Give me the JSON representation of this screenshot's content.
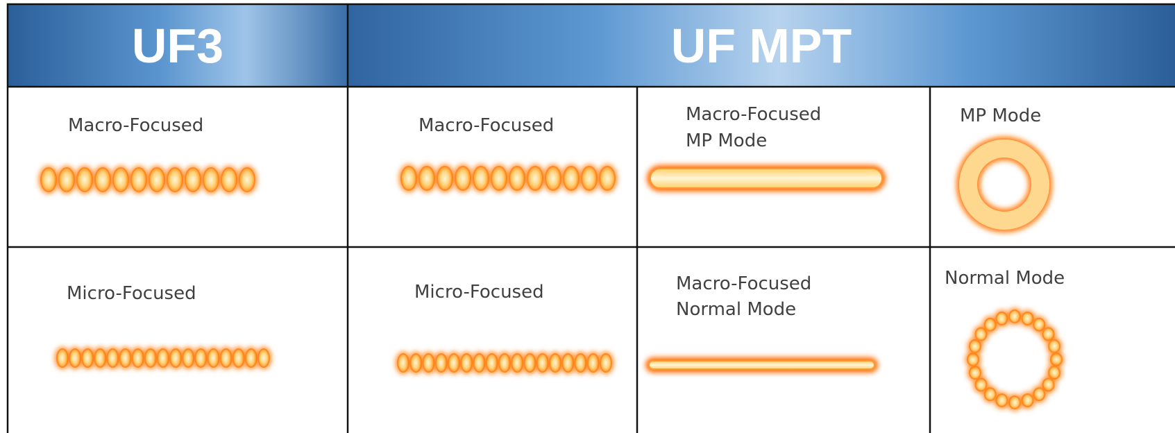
{
  "header": {
    "cells": [
      "UF3",
      "UF MPT"
    ]
  },
  "table": {
    "rows": [
      [
        [
          "Macro-Focused"
        ],
        [
          "Macro-Focused"
        ],
        [
          "Macro-Focused",
          "MP Mode"
        ],
        [
          "MP Mode"
        ]
      ],
      [
        [
          "Micro-Focused"
        ],
        [
          "Micro-Focused"
        ],
        [
          "Macro-Focused",
          "Normal Mode"
        ],
        [
          "Normal Mode"
        ]
      ]
    ]
  }
}
